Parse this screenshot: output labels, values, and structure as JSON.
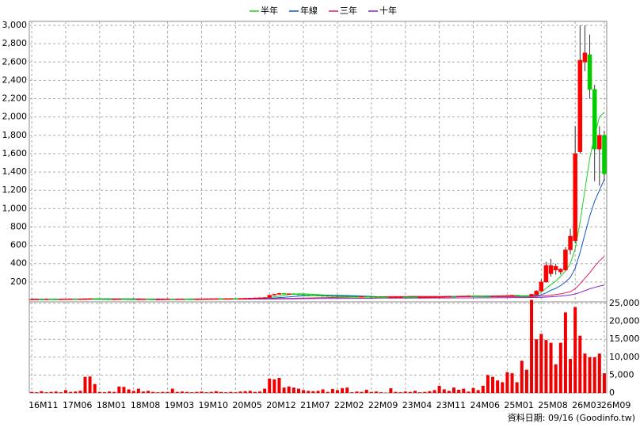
{
  "chart_data": {
    "type": "candlestick",
    "source": "資料日期: 09/16 (Goodinfo.tw)",
    "categories": [
      "16M11",
      null,
      null,
      null,
      null,
      null,
      null,
      "17M06",
      null,
      null,
      null,
      null,
      null,
      null,
      "18M01",
      null,
      null,
      null,
      null,
      null,
      null,
      "18M08",
      null,
      null,
      null,
      null,
      null,
      null,
      "19M03",
      null,
      null,
      null,
      null,
      null,
      null,
      "19M10",
      null,
      null,
      null,
      null,
      null,
      null,
      "20M05",
      null,
      null,
      null,
      null,
      null,
      null,
      "20M12",
      null,
      null,
      null,
      null,
      null,
      null,
      "21M07",
      null,
      null,
      null,
      null,
      null,
      null,
      "22M02",
      null,
      null,
      null,
      null,
      null,
      null,
      "22M09",
      null,
      null,
      null,
      null,
      null,
      null,
      "23M04",
      null,
      null,
      null,
      null,
      null,
      null,
      "23M11",
      null,
      null,
      null,
      null,
      null,
      null,
      "24M06",
      null,
      null,
      null,
      null,
      null,
      null,
      "25M01",
      null,
      null,
      null,
      null,
      null,
      null,
      "25M08",
      null,
      null,
      null,
      null,
      null,
      null,
      "26M03",
      null,
      null,
      null,
      null,
      null,
      "26M09"
    ],
    "open": [
      11,
      12,
      13,
      12,
      14,
      13,
      12,
      14,
      15,
      16,
      14,
      15,
      17,
      18,
      16,
      15,
      14,
      13,
      14,
      15,
      14,
      13,
      12,
      13,
      14,
      13,
      12,
      12,
      13,
      14,
      13,
      14,
      15,
      14,
      13,
      14,
      15,
      16,
      17,
      18,
      17,
      18,
      19,
      18,
      20,
      22,
      24,
      26,
      28,
      30,
      55,
      65,
      75,
      70,
      72,
      68,
      65,
      60,
      58,
      55,
      52,
      50,
      48,
      46,
      45,
      44,
      42,
      40,
      38,
      40,
      38,
      36,
      35,
      34,
      33,
      34,
      35,
      36,
      35,
      34,
      33,
      34,
      35,
      36,
      38,
      40,
      42,
      44,
      43,
      45,
      46,
      48,
      47,
      46,
      45,
      44,
      46,
      48,
      50,
      52,
      55,
      50,
      48,
      45,
      60,
      100,
      200,
      290,
      330,
      310,
      330,
      550,
      650,
      1620,
      2600,
      2680,
      2300,
      1650,
      1800
    ],
    "high": [
      15,
      16,
      16,
      17,
      17,
      16,
      17,
      18,
      19,
      19,
      18,
      20,
      21,
      21,
      19,
      18,
      17,
      17,
      18,
      18,
      17,
      16,
      16,
      17,
      17,
      16,
      15,
      16,
      17,
      17,
      17,
      18,
      18,
      17,
      17,
      18,
      19,
      20,
      21,
      21,
      21,
      22,
      22,
      23,
      25,
      27,
      29,
      31,
      33,
      60,
      70,
      80,
      78,
      75,
      75,
      72,
      68,
      63,
      61,
      58,
      55,
      53,
      51,
      49,
      48,
      47,
      45,
      43,
      43,
      43,
      41,
      39,
      38,
      37,
      37,
      38,
      39,
      39,
      38,
      37,
      37,
      38,
      39,
      41,
      43,
      45,
      47,
      47,
      48,
      49,
      51,
      51,
      50,
      49,
      48,
      49,
      51,
      53,
      55,
      58,
      58,
      53,
      51,
      70,
      110,
      230,
      420,
      450,
      400,
      350,
      580,
      780,
      1900,
      3000,
      3000,
      2900,
      2350,
      1900,
      1850
    ],
    "low": [
      8,
      9,
      9,
      9,
      10,
      9,
      9,
      11,
      12,
      11,
      11,
      12,
      14,
      13,
      12,
      11,
      10,
      10,
      11,
      11,
      10,
      9,
      9,
      10,
      10,
      9,
      9,
      9,
      10,
      10,
      10,
      11,
      11,
      10,
      10,
      11,
      12,
      13,
      14,
      14,
      14,
      15,
      15,
      15,
      17,
      19,
      21,
      23,
      25,
      27,
      52,
      62,
      67,
      67,
      65,
      62,
      57,
      55,
      52,
      49,
      47,
      45,
      43,
      42,
      41,
      39,
      37,
      35,
      35,
      35,
      33,
      32,
      31,
      30,
      30,
      31,
      32,
      32,
      31,
      30,
      30,
      31,
      32,
      33,
      35,
      37,
      39,
      40,
      40,
      42,
      43,
      44,
      43,
      42,
      41,
      41,
      43,
      45,
      47,
      49,
      47,
      45,
      39,
      40,
      55,
      95,
      190,
      260,
      280,
      280,
      320,
      500,
      620,
      1600,
      2500,
      2200,
      1300,
      1250,
      1300
    ],
    "close": [
      12,
      13,
      12,
      14,
      13,
      12,
      14,
      15,
      16,
      14,
      15,
      17,
      18,
      16,
      15,
      14,
      13,
      14,
      15,
      14,
      13,
      12,
      13,
      14,
      13,
      12,
      12,
      13,
      14,
      13,
      14,
      15,
      14,
      13,
      14,
      15,
      16,
      17,
      18,
      17,
      18,
      19,
      18,
      20,
      22,
      24,
      26,
      28,
      30,
      55,
      65,
      75,
      70,
      72,
      68,
      65,
      60,
      58,
      55,
      52,
      50,
      48,
      46,
      45,
      44,
      42,
      40,
      38,
      40,
      38,
      36,
      35,
      34,
      33,
      34,
      35,
      36,
      35,
      34,
      33,
      34,
      35,
      36,
      38,
      40,
      42,
      44,
      43,
      45,
      46,
      48,
      47,
      46,
      45,
      44,
      46,
      48,
      50,
      52,
      55,
      50,
      48,
      42,
      65,
      100,
      200,
      380,
      380,
      370,
      340,
      550,
      700,
      1600,
      2620,
      2700,
      2300,
      1650,
      1800,
      1380
    ],
    "volume": [
      300,
      200,
      500,
      200,
      300,
      400,
      200,
      800,
      300,
      400,
      600,
      4500,
      4600,
      2500,
      300,
      200,
      400,
      300,
      1800,
      1700,
      1000,
      600,
      1200,
      400,
      600,
      300,
      200,
      300,
      300,
      1200,
      300,
      400,
      300,
      200,
      300,
      400,
      200,
      300,
      500,
      300,
      200,
      300,
      200,
      400,
      500,
      600,
      300,
      400,
      1200,
      4000,
      3800,
      4200,
      1500,
      1800,
      1500,
      1200,
      800,
      600,
      500,
      600,
      1000,
      300,
      1100,
      800,
      1300,
      1500,
      200,
      400,
      300,
      900,
      300,
      400,
      200,
      100,
      1300,
      300,
      200,
      400,
      300,
      600,
      200,
      300,
      500,
      800,
      2000,
      1000,
      600,
      1500,
      900,
      1200,
      400,
      1400,
      800,
      2000,
      5000,
      4500,
      3500,
      3000,
      5800,
      5500,
      3000,
      9000,
      6500,
      26000,
      15000,
      16500,
      14800,
      14000,
      8000,
      14000,
      22500,
      9500,
      24000,
      16000,
      11000,
      10000,
      10000,
      11000,
      5500
    ],
    "up_color": "#ff0000",
    "down_color": "#00cc00",
    "volume_color": "#ee0000",
    "series": [
      {
        "name": "半年",
        "color": "#22cc22",
        "values": [
          12,
          12,
          12,
          13,
          13,
          13,
          13,
          13,
          14,
          14,
          14,
          15,
          15,
          16,
          16,
          16,
          16,
          15,
          15,
          15,
          15,
          14,
          14,
          14,
          13,
          13,
          13,
          13,
          13,
          13,
          13,
          14,
          14,
          14,
          14,
          14,
          14,
          15,
          15,
          16,
          16,
          17,
          17,
          18,
          19,
          20,
          21,
          23,
          25,
          30,
          38,
          46,
          54,
          62,
          67,
          70,
          70,
          68,
          65,
          62,
          58,
          55,
          52,
          49,
          47,
          45,
          43,
          42,
          40,
          40,
          39,
          38,
          37,
          36,
          35,
          35,
          35,
          35,
          35,
          35,
          35,
          35,
          35,
          36,
          37,
          38,
          40,
          41,
          43,
          44,
          45,
          46,
          46,
          46,
          46,
          46,
          46,
          47,
          48,
          50,
          50,
          50,
          49,
          50,
          60,
          90,
          130,
          170,
          210,
          260,
          320,
          400,
          560,
          850,
          1200,
          1550,
          1800,
          2000,
          2050
        ]
      },
      {
        "name": "年線",
        "color": "#1155cc",
        "values": [
          12,
          12,
          12,
          12,
          12,
          12,
          13,
          13,
          13,
          13,
          13,
          14,
          14,
          14,
          14,
          15,
          15,
          15,
          15,
          15,
          15,
          15,
          15,
          14,
          14,
          14,
          14,
          14,
          14,
          13,
          13,
          13,
          13,
          14,
          14,
          14,
          14,
          14,
          15,
          15,
          15,
          16,
          16,
          16,
          17,
          17,
          18,
          19,
          20,
          22,
          25,
          29,
          33,
          37,
          41,
          45,
          48,
          50,
          52,
          54,
          55,
          55,
          54,
          54,
          53,
          52,
          50,
          48,
          46,
          44,
          42,
          40,
          39,
          38,
          37,
          37,
          36,
          36,
          36,
          35,
          35,
          35,
          35,
          35,
          35,
          36,
          37,
          38,
          39,
          40,
          41,
          42,
          43,
          44,
          45,
          45,
          45,
          46,
          46,
          47,
          47,
          47,
          46,
          45,
          50,
          60,
          80,
          110,
          130,
          160,
          200,
          250,
          350,
          520,
          720,
          920,
          1080,
          1200,
          1320
        ]
      },
      {
        "name": "三年",
        "color": "#dd2255",
        "values": [
          12,
          12,
          12,
          12,
          12,
          12,
          12,
          12,
          12,
          12,
          12,
          12,
          13,
          13,
          13,
          13,
          13,
          13,
          13,
          13,
          13,
          13,
          13,
          13,
          13,
          13,
          13,
          13,
          13,
          13,
          13,
          13,
          13,
          13,
          13,
          13,
          13,
          13,
          14,
          14,
          14,
          14,
          14,
          14,
          15,
          15,
          15,
          15,
          16,
          17,
          18,
          19,
          20,
          21,
          22,
          23,
          24,
          25,
          26,
          27,
          28,
          29,
          30,
          31,
          32,
          33,
          34,
          35,
          36,
          37,
          38,
          39,
          39,
          40,
          40,
          41,
          41,
          41,
          42,
          42,
          42,
          42,
          42,
          42,
          42,
          42,
          42,
          42,
          42,
          42,
          41,
          41,
          41,
          41,
          41,
          40,
          40,
          40,
          40,
          40,
          40,
          40,
          40,
          40,
          42,
          45,
          50,
          55,
          62,
          70,
          80,
          95,
          125,
          180,
          240,
          300,
          370,
          430,
          480
        ]
      },
      {
        "name": "十年",
        "color": "#8822cc",
        "values": [
          10,
          10,
          10,
          10,
          10,
          10,
          10,
          10,
          10,
          10,
          10,
          11,
          11,
          11,
          11,
          11,
          11,
          11,
          11,
          11,
          11,
          11,
          11,
          11,
          11,
          11,
          11,
          11,
          11,
          11,
          11,
          11,
          11,
          11,
          11,
          12,
          12,
          12,
          12,
          12,
          12,
          12,
          12,
          12,
          12,
          12,
          13,
          13,
          13,
          14,
          14,
          15,
          15,
          16,
          16,
          17,
          17,
          18,
          18,
          19,
          19,
          20,
          20,
          20,
          21,
          21,
          21,
          22,
          22,
          22,
          22,
          23,
          23,
          23,
          23,
          23,
          24,
          24,
          24,
          24,
          24,
          24,
          25,
          25,
          25,
          25,
          25,
          26,
          26,
          26,
          26,
          26,
          27,
          27,
          27,
          27,
          28,
          28,
          28,
          29,
          29,
          29,
          29,
          30,
          31,
          32,
          35,
          38,
          42,
          46,
          52,
          58,
          68,
          85,
          105,
          125,
          140,
          155,
          165
        ]
      }
    ],
    "ylim": [
      0,
      3000
    ],
    "yticks": [
      200,
      400,
      600,
      800,
      {
        "value": 1000,
        "label": "1,000"
      },
      {
        "value": 1200,
        "label": "1,200"
      },
      {
        "value": 1400,
        "label": "1,400"
      },
      {
        "value": 1600,
        "label": "1,600"
      },
      {
        "value": 1800,
        "label": "1,800"
      },
      {
        "value": 2000,
        "label": "2,000"
      },
      {
        "value": 2200,
        "label": "2,200"
      },
      {
        "value": 2400,
        "label": "2,400"
      },
      {
        "value": 2600,
        "label": "2,600"
      },
      {
        "value": 2800,
        "label": "2,800"
      },
      {
        "value": 3000,
        "label": "3,000"
      }
    ],
    "y2lim": [
      0,
      25000
    ],
    "y2ticks": [
      0,
      {
        "value": 5000,
        "label": "5,000"
      },
      {
        "value": 10000,
        "label": "10,000"
      },
      {
        "value": 15000,
        "label": "15,000"
      },
      {
        "value": 20000,
        "label": "20,000"
      },
      {
        "value": 25000,
        "label": "25,000"
      }
    ],
    "grid": true
  }
}
